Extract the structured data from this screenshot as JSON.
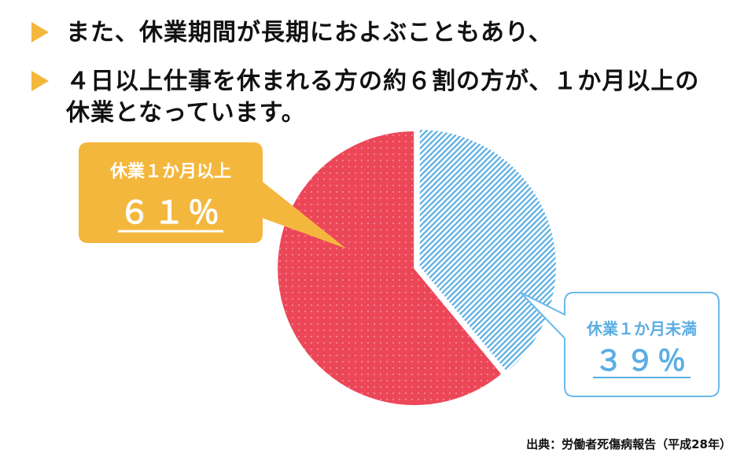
{
  "bullets": [
    "また、休業期間が長期におよぶこともあり、",
    "４日以上仕事を休まれる方の約６割の方が、１か月以上の休業となっています。"
  ],
  "chart_data": {
    "type": "pie",
    "slices": [
      {
        "label": "休業１か月以上",
        "value": 61,
        "value_label": "６１％",
        "color": "#ec4758",
        "callout_color": "#f4b73d"
      },
      {
        "label": "休業１か月未満",
        "value": 39,
        "value_label": "３９％",
        "color": "#5aaee3",
        "callout_color": "#6ab8ea"
      }
    ]
  },
  "source": "出典：労働者死傷病報告（平成28年）"
}
